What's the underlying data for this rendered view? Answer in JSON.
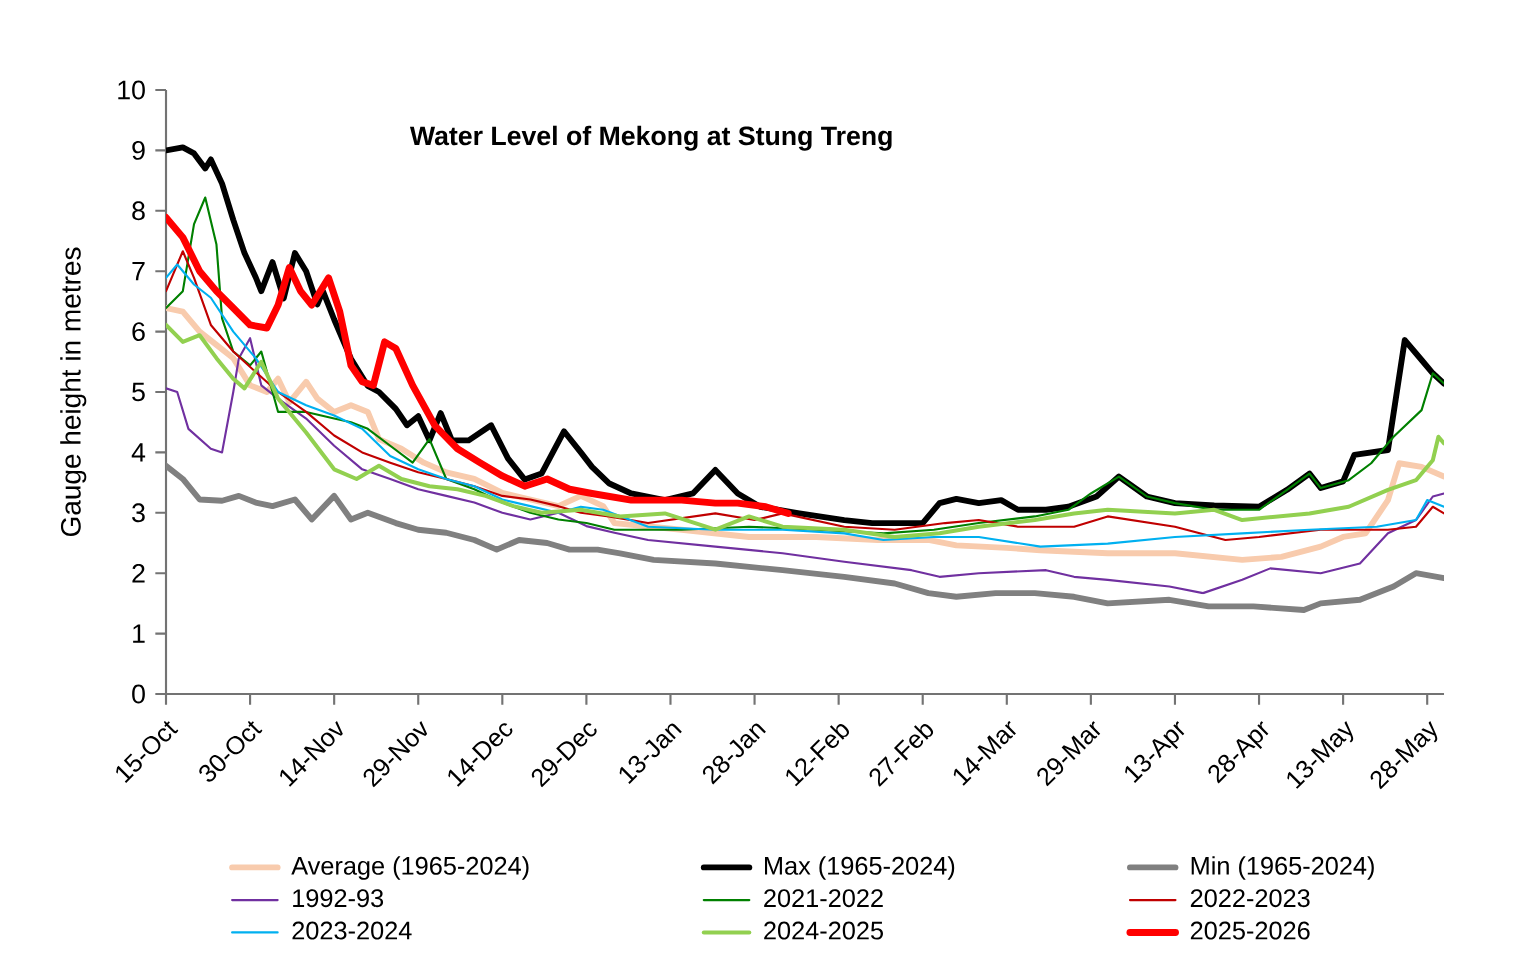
{
  "chart_data": {
    "type": "line",
    "title": "Water Level of Mekong at Stung Treng",
    "ylabel": "Gauge height in metres",
    "xlim": [
      "2025-10-15",
      "2026-05-31"
    ],
    "ylim": [
      0,
      10
    ],
    "yticks": [
      0,
      1,
      2,
      3,
      4,
      5,
      6,
      7,
      8,
      9,
      10
    ],
    "xticks": [
      {
        "value": "2025-10-15",
        "label": "15-Oct"
      },
      {
        "value": "2025-10-30",
        "label": "30-Oct"
      },
      {
        "value": "2025-11-14",
        "label": "14-Nov"
      },
      {
        "value": "2025-11-29",
        "label": "29-Nov"
      },
      {
        "value": "2025-12-14",
        "label": "14-Dec"
      },
      {
        "value": "2025-12-29",
        "label": "29-Dec"
      },
      {
        "value": "2026-01-13",
        "label": "13-Jan"
      },
      {
        "value": "2026-01-28",
        "label": "28-Jan"
      },
      {
        "value": "2026-02-12",
        "label": "12-Feb"
      },
      {
        "value": "2026-02-27",
        "label": "27-Feb"
      },
      {
        "value": "2026-03-14",
        "label": "14-Mar"
      },
      {
        "value": "2026-03-29",
        "label": "29-Mar"
      },
      {
        "value": "2026-04-13",
        "label": "13-Apr"
      },
      {
        "value": "2026-04-28",
        "label": "28-Apr"
      },
      {
        "value": "2026-05-13",
        "label": "13-May"
      },
      {
        "value": "2026-05-28",
        "label": "28-May"
      }
    ],
    "legend": "bottom",
    "series": [
      {
        "name": "Average (1965-2024)",
        "color": "#f8cbad",
        "x": [
          "2025-10-15",
          "2025-10-18",
          "2025-10-21",
          "2025-10-24",
          "2025-10-27",
          "2025-10-30",
          "2025-11-02",
          "2025-11-04",
          "2025-11-06",
          "2025-11-09",
          "2025-11-11",
          "2025-11-14",
          "2025-11-17",
          "2025-11-20",
          "2025-11-22",
          "2025-11-26",
          "2025-11-30",
          "2025-12-04",
          "2025-12-09",
          "2025-12-14",
          "2025-12-19",
          "2025-12-24",
          "2025-12-28",
          "2026-01-01",
          "2026-01-03",
          "2026-01-15",
          "2026-01-27",
          "2026-02-08",
          "2026-02-19",
          "2026-02-28",
          "2026-03-05",
          "2026-03-14",
          "2026-03-20",
          "2026-04-01",
          "2026-04-13",
          "2026-04-25",
          "2026-05-02",
          "2026-05-09",
          "2026-05-13",
          "2026-05-17",
          "2026-05-21",
          "2026-05-23",
          "2026-05-27",
          "2026-05-31"
        ],
        "values": [
          6.39,
          6.33,
          6.0,
          5.78,
          5.56,
          5.11,
          5.0,
          5.22,
          4.83,
          5.17,
          4.89,
          4.67,
          4.78,
          4.67,
          4.22,
          4.06,
          3.83,
          3.67,
          3.56,
          3.33,
          3.22,
          3.11,
          3.28,
          3.11,
          2.83,
          2.72,
          2.6,
          2.6,
          2.55,
          2.55,
          2.46,
          2.42,
          2.38,
          2.33,
          2.33,
          2.22,
          2.27,
          2.44,
          2.6,
          2.66,
          3.21,
          3.82,
          3.76,
          3.6
        ]
      },
      {
        "name": "Max (1965-2024)",
        "color": "#000000",
        "x": [
          "2025-10-15",
          "2025-10-18",
          "2025-10-20",
          "2025-10-22",
          "2025-10-23",
          "2025-10-25",
          "2025-10-27",
          "2025-10-29",
          "2025-10-31",
          "2025-11-01",
          "2025-11-03",
          "2025-11-05",
          "2025-11-07",
          "2025-11-09",
          "2025-11-11",
          "2025-11-12",
          "2025-11-14",
          "2025-11-17",
          "2025-11-20",
          "2025-11-22",
          "2025-11-25",
          "2025-11-27",
          "2025-11-29",
          "2025-12-01",
          "2025-12-03",
          "2025-12-05",
          "2025-12-08",
          "2025-12-12",
          "2025-12-15",
          "2025-12-18",
          "2025-12-21",
          "2025-12-25",
          "2025-12-28",
          "2025-12-30",
          "2026-01-02",
          "2026-01-06",
          "2026-01-12",
          "2026-01-17",
          "2026-01-21",
          "2026-01-25",
          "2026-01-29",
          "2026-02-05",
          "2026-02-13",
          "2026-02-18",
          "2026-02-27",
          "2026-03-02",
          "2026-03-05",
          "2026-03-09",
          "2026-03-13",
          "2026-03-16",
          "2026-03-21",
          "2026-03-25",
          "2026-03-30",
          "2026-04-03",
          "2026-04-08",
          "2026-04-13",
          "2026-04-20",
          "2026-04-28",
          "2026-05-03",
          "2026-05-07",
          "2026-05-09",
          "2026-05-13",
          "2026-05-15",
          "2026-05-21",
          "2026-05-24",
          "2026-05-27",
          "2026-05-29",
          "2026-05-31"
        ],
        "values": [
          9.0,
          9.05,
          8.95,
          8.7,
          8.85,
          8.45,
          7.85,
          7.3,
          6.9,
          6.67,
          7.15,
          6.55,
          7.3,
          7.0,
          6.45,
          6.67,
          6.2,
          5.55,
          5.1,
          5.0,
          4.72,
          4.45,
          4.6,
          4.2,
          4.65,
          4.2,
          4.2,
          4.45,
          3.9,
          3.55,
          3.65,
          4.35,
          4.0,
          3.76,
          3.49,
          3.32,
          3.21,
          3.32,
          3.71,
          3.32,
          3.1,
          2.99,
          2.88,
          2.83,
          2.83,
          3.16,
          3.23,
          3.16,
          3.21,
          3.05,
          3.05,
          3.1,
          3.27,
          3.6,
          3.27,
          3.16,
          3.12,
          3.1,
          3.38,
          3.65,
          3.41,
          3.52,
          3.96,
          4.04,
          5.86,
          5.53,
          5.31,
          5.14
        ]
      },
      {
        "name": "Min (1965-2024)",
        "color": "#808080",
        "x": [
          "2025-10-15",
          "2025-10-18",
          "2025-10-21",
          "2025-10-25",
          "2025-10-28",
          "2025-10-31",
          "2025-11-03",
          "2025-11-07",
          "2025-11-10",
          "2025-11-14",
          "2025-11-17",
          "2025-11-20",
          "2025-11-25",
          "2025-11-29",
          "2025-12-04",
          "2025-12-09",
          "2025-12-13",
          "2025-12-17",
          "2025-12-22",
          "2025-12-26",
          "2025-12-31",
          "2026-01-04",
          "2026-01-10",
          "2026-01-21",
          "2026-02-02",
          "2026-02-13",
          "2026-02-22",
          "2026-02-28",
          "2026-03-05",
          "2026-03-12",
          "2026-03-19",
          "2026-03-26",
          "2026-04-01",
          "2026-04-12",
          "2026-04-19",
          "2026-04-27",
          "2026-05-06",
          "2026-05-09",
          "2026-05-16",
          "2026-05-22",
          "2026-05-26",
          "2026-05-31"
        ],
        "values": [
          3.78,
          3.56,
          3.22,
          3.2,
          3.28,
          3.17,
          3.11,
          3.22,
          2.89,
          3.28,
          2.89,
          3.0,
          2.83,
          2.72,
          2.67,
          2.55,
          2.39,
          2.55,
          2.5,
          2.39,
          2.39,
          2.33,
          2.22,
          2.16,
          2.05,
          1.94,
          1.83,
          1.67,
          1.61,
          1.67,
          1.67,
          1.61,
          1.5,
          1.56,
          1.45,
          1.45,
          1.39,
          1.5,
          1.56,
          1.78,
          2.0,
          1.92
        ]
      },
      {
        "name": "1992-93",
        "color": "#7030a0",
        "x": [
          "2025-10-15",
          "2025-10-17",
          "2025-10-19",
          "2025-10-23",
          "2025-10-25",
          "2025-10-27",
          "2025-10-28",
          "2025-10-30",
          "2025-11-01",
          "2025-11-04",
          "2025-11-09",
          "2025-11-14",
          "2025-11-19",
          "2025-11-24",
          "2025-11-29",
          "2025-12-04",
          "2025-12-09",
          "2025-12-14",
          "2025-12-19",
          "2025-12-24",
          "2025-12-29",
          "2026-01-03",
          "2026-01-09",
          "2026-01-21",
          "2026-02-02",
          "2026-02-13",
          "2026-02-25",
          "2026-03-02",
          "2026-03-09",
          "2026-03-21",
          "2026-03-26",
          "2026-04-01",
          "2026-04-12",
          "2026-04-18",
          "2026-04-25",
          "2026-04-30",
          "2026-05-09",
          "2026-05-16",
          "2026-05-21",
          "2026-05-26",
          "2026-05-29",
          "2026-05-31"
        ],
        "values": [
          5.06,
          5.0,
          4.39,
          4.06,
          4.0,
          5.0,
          5.56,
          5.89,
          5.11,
          4.89,
          4.56,
          4.11,
          3.72,
          3.56,
          3.39,
          3.28,
          3.17,
          3.0,
          2.89,
          3.0,
          2.78,
          2.67,
          2.55,
          2.44,
          2.33,
          2.19,
          2.05,
          1.94,
          2.0,
          2.05,
          1.94,
          1.89,
          1.78,
          1.67,
          1.89,
          2.08,
          2.0,
          2.16,
          2.66,
          2.88,
          3.27,
          3.32
        ]
      },
      {
        "name": "2021-2022",
        "color": "#008000",
        "x": [
          "2025-10-15",
          "2025-10-18",
          "2025-10-20",
          "2025-10-22",
          "2025-10-24",
          "2025-10-25",
          "2025-10-27",
          "2025-10-30",
          "2025-11-01",
          "2025-11-04",
          "2025-11-09",
          "2025-11-14",
          "2025-11-17",
          "2025-11-20",
          "2025-11-24",
          "2025-11-28",
          "2025-12-01",
          "2025-12-04",
          "2025-12-09",
          "2025-12-14",
          "2025-12-19",
          "2025-12-24",
          "2025-12-29",
          "2026-01-03",
          "2026-01-15",
          "2026-01-27",
          "2026-02-08",
          "2026-02-20",
          "2026-03-01",
          "2026-03-09",
          "2026-03-19",
          "2026-03-25",
          "2026-03-29",
          "2026-04-03",
          "2026-04-08",
          "2026-04-13",
          "2026-04-20",
          "2026-04-28",
          "2026-05-03",
          "2026-05-07",
          "2026-05-09",
          "2026-05-14",
          "2026-05-18",
          "2026-05-22",
          "2026-05-27",
          "2026-05-29",
          "2026-05-31"
        ],
        "values": [
          6.39,
          6.67,
          7.78,
          8.22,
          7.44,
          6.22,
          5.67,
          5.44,
          5.67,
          4.67,
          4.67,
          4.56,
          4.5,
          4.39,
          4.11,
          3.83,
          4.22,
          3.56,
          3.39,
          3.17,
          3.0,
          2.89,
          2.83,
          2.72,
          2.72,
          2.77,
          2.72,
          2.66,
          2.72,
          2.83,
          2.94,
          3.05,
          3.32,
          3.6,
          3.27,
          3.16,
          3.05,
          3.05,
          3.38,
          3.65,
          3.41,
          3.54,
          3.82,
          4.26,
          4.7,
          5.31,
          5.14
        ]
      },
      {
        "name": "2022-2023",
        "color": "#c00000",
        "x": [
          "2025-10-15",
          "2025-10-18",
          "2025-10-20",
          "2025-10-23",
          "2025-10-27",
          "2025-10-31",
          "2025-11-04",
          "2025-11-09",
          "2025-11-14",
          "2025-11-19",
          "2025-11-24",
          "2025-11-29",
          "2025-12-04",
          "2025-12-09",
          "2025-12-14",
          "2025-12-19",
          "2025-12-24",
          "2025-12-28",
          "2026-01-02",
          "2026-01-09",
          "2026-01-21",
          "2026-01-28",
          "2026-02-02",
          "2026-02-13",
          "2026-02-22",
          "2026-03-03",
          "2026-03-09",
          "2026-03-16",
          "2026-03-26",
          "2026-04-01",
          "2026-04-13",
          "2026-04-22",
          "2026-04-28",
          "2026-05-09",
          "2026-05-21",
          "2026-05-26",
          "2026-05-29",
          "2026-05-31"
        ],
        "values": [
          6.67,
          7.33,
          6.89,
          6.11,
          5.67,
          5.33,
          5.0,
          4.67,
          4.28,
          4.0,
          3.83,
          3.67,
          3.56,
          3.44,
          3.28,
          3.22,
          3.11,
          3.0,
          2.94,
          2.83,
          2.99,
          2.88,
          2.99,
          2.77,
          2.72,
          2.83,
          2.88,
          2.77,
          2.77,
          2.94,
          2.77,
          2.55,
          2.6,
          2.72,
          2.72,
          2.77,
          3.1,
          2.99
        ]
      },
      {
        "name": "2023-2024",
        "color": "#00b0f0",
        "x": [
          "2025-10-15",
          "2025-10-17",
          "2025-10-20",
          "2025-10-23",
          "2025-10-27",
          "2025-10-31",
          "2025-11-04",
          "2025-11-09",
          "2025-11-14",
          "2025-11-19",
          "2025-11-24",
          "2025-11-29",
          "2025-12-04",
          "2025-12-09",
          "2025-12-14",
          "2025-12-19",
          "2025-12-24",
          "2025-12-28",
          "2026-01-01",
          "2026-01-09",
          "2026-01-21",
          "2026-02-02",
          "2026-02-13",
          "2026-02-20",
          "2026-03-01",
          "2026-03-09",
          "2026-03-20",
          "2026-04-01",
          "2026-04-13",
          "2026-04-25",
          "2026-05-07",
          "2026-05-19",
          "2026-05-26",
          "2026-05-28",
          "2026-05-31"
        ],
        "values": [
          6.89,
          7.11,
          6.78,
          6.56,
          6.0,
          5.56,
          5.0,
          4.78,
          4.61,
          4.39,
          3.94,
          3.72,
          3.56,
          3.44,
          3.22,
          3.11,
          3.0,
          3.1,
          3.05,
          2.77,
          2.72,
          2.72,
          2.66,
          2.55,
          2.6,
          2.6,
          2.44,
          2.49,
          2.6,
          2.66,
          2.72,
          2.77,
          2.88,
          3.21,
          3.1
        ]
      },
      {
        "name": "2024-2025",
        "color": "#92d050",
        "x": [
          "2025-10-15",
          "2025-10-18",
          "2025-10-21",
          "2025-10-24",
          "2025-10-27",
          "2025-10-29",
          "2025-11-01",
          "2025-11-04",
          "2025-11-09",
          "2025-11-14",
          "2025-11-18",
          "2025-11-22",
          "2025-11-26",
          "2025-12-01",
          "2025-12-06",
          "2025-12-11",
          "2025-12-16",
          "2025-12-21",
          "2025-12-28",
          "2026-01-04",
          "2026-01-12",
          "2026-01-21",
          "2026-01-27",
          "2026-02-02",
          "2026-02-13",
          "2026-02-22",
          "2026-03-02",
          "2026-03-09",
          "2026-03-19",
          "2026-03-26",
          "2026-04-01",
          "2026-04-13",
          "2026-04-20",
          "2026-04-25",
          "2026-05-07",
          "2026-05-14",
          "2026-05-21",
          "2026-05-26",
          "2026-05-29",
          "2026-05-30",
          "2026-05-31"
        ],
        "values": [
          6.11,
          5.83,
          5.94,
          5.56,
          5.22,
          5.06,
          5.5,
          4.89,
          4.33,
          3.72,
          3.56,
          3.78,
          3.56,
          3.44,
          3.39,
          3.28,
          3.11,
          3.0,
          3.05,
          2.94,
          2.99,
          2.72,
          2.94,
          2.77,
          2.72,
          2.6,
          2.66,
          2.77,
          2.88,
          2.99,
          3.05,
          2.99,
          3.05,
          2.88,
          2.99,
          3.1,
          3.38,
          3.54,
          3.87,
          4.26,
          4.15
        ]
      },
      {
        "name": "2025-2026",
        "color": "#ff0000",
        "x": [
          "2025-10-15",
          "2025-10-18",
          "2025-10-21",
          "2025-10-24",
          "2025-10-27",
          "2025-10-30",
          "2025-11-02",
          "2025-11-04",
          "2025-11-06",
          "2025-11-08",
          "2025-11-10",
          "2025-11-13",
          "2025-11-15",
          "2025-11-17",
          "2025-11-19",
          "2025-11-21",
          "2025-11-23",
          "2025-11-25",
          "2025-11-28",
          "2025-12-02",
          "2025-12-06",
          "2025-12-10",
          "2025-12-14",
          "2025-12-18",
          "2025-12-22",
          "2025-12-26",
          "2025-12-30",
          "2026-01-06",
          "2026-01-15",
          "2026-01-21",
          "2026-01-25",
          "2026-01-30",
          "2026-02-03"
        ],
        "values": [
          7.89,
          7.56,
          7.0,
          6.67,
          6.39,
          6.11,
          6.06,
          6.44,
          7.06,
          6.67,
          6.44,
          6.89,
          6.33,
          5.44,
          5.17,
          5.11,
          5.83,
          5.72,
          5.11,
          4.44,
          4.06,
          3.83,
          3.61,
          3.44,
          3.56,
          3.39,
          3.32,
          3.21,
          3.21,
          3.16,
          3.16,
          3.1,
          2.99
        ]
      }
    ]
  }
}
